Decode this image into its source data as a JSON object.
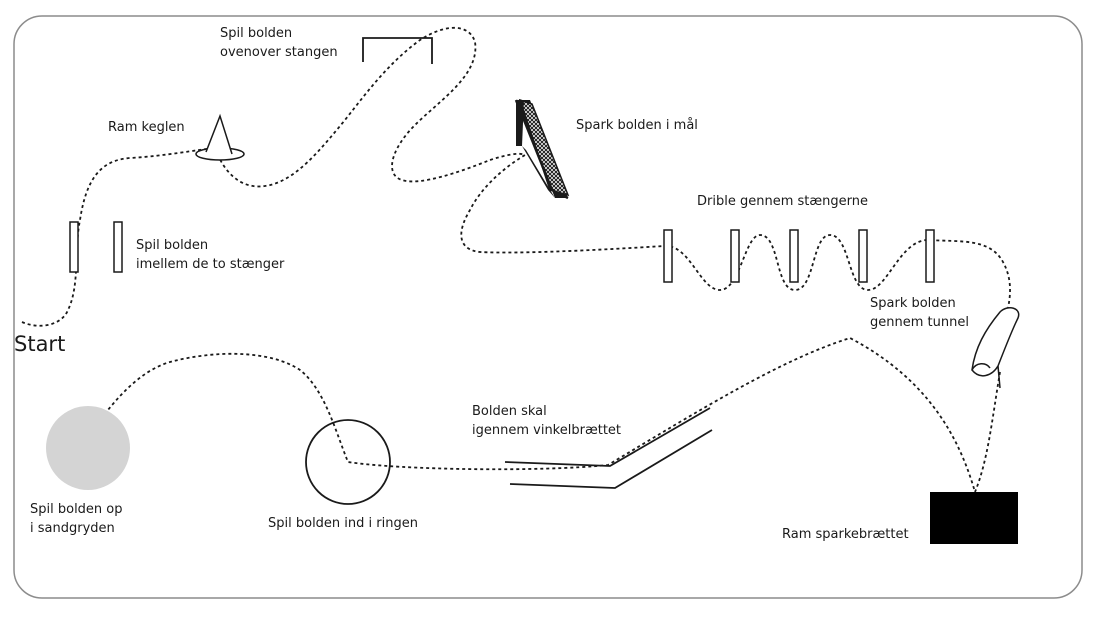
{
  "labels": {
    "start": "Start",
    "over_bar": [
      "Spil bolden",
      "ovenover stangen"
    ],
    "cone": "Ram keglen",
    "goal": "Spark bolden i mål",
    "two_poles": [
      "Spil bolden",
      "imellem de to stænger"
    ],
    "dribble": "Drible gennem stængerne",
    "tunnel": [
      "Spark bolden",
      "gennem tunnel"
    ],
    "angle_board": [
      "Bolden skal",
      "igennem vinkelbrættet"
    ],
    "sandpit": [
      "Spil bolden op",
      "i sandgryden"
    ],
    "ring": "Spil bolden ind i ringen",
    "kickboard": "Ram sparkebrættet"
  },
  "colors": {
    "line": "#1a1a1a",
    "frame": "#8c8c8c",
    "sandpit": "#d4d4d4",
    "kickboard": "#000000"
  }
}
